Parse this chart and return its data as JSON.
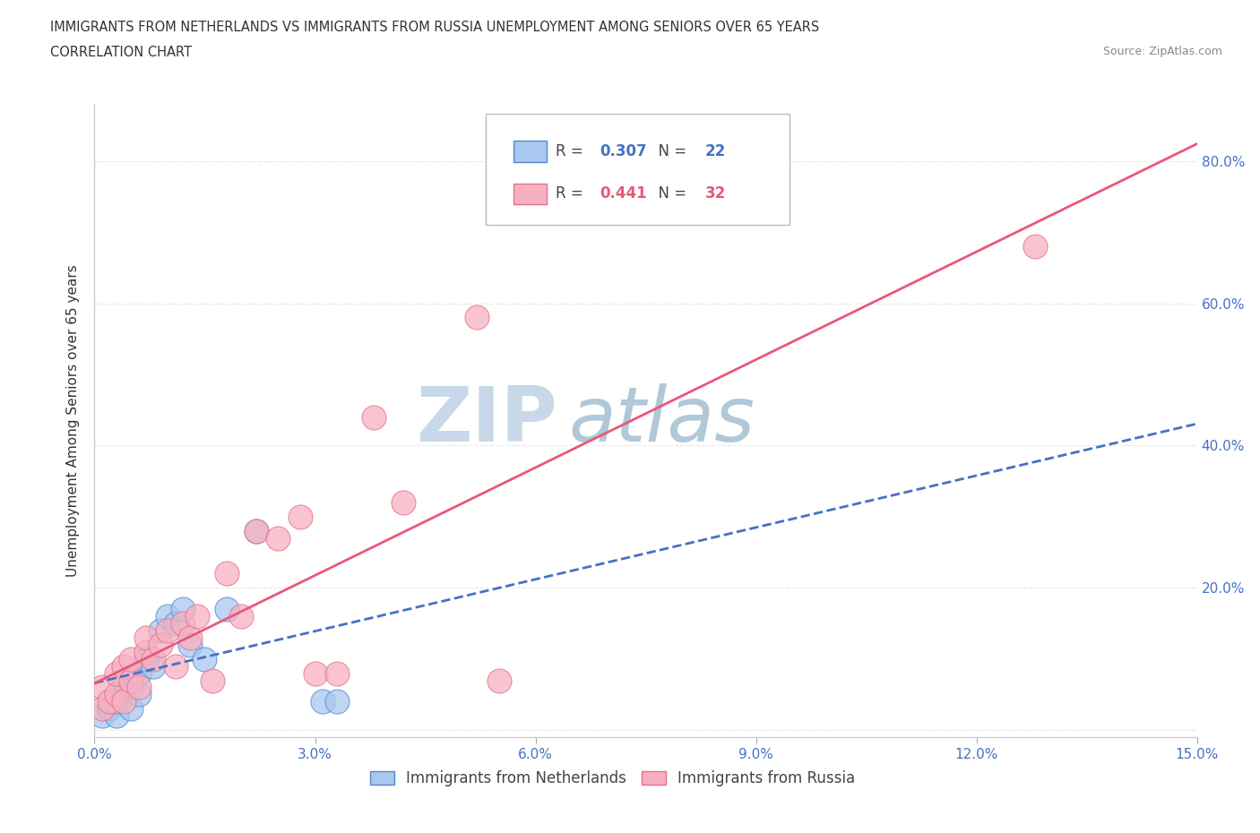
{
  "title_line1": "IMMIGRANTS FROM NETHERLANDS VS IMMIGRANTS FROM RUSSIA UNEMPLOYMENT AMONG SENIORS OVER 65 YEARS",
  "title_line2": "CORRELATION CHART",
  "source_text": "Source: ZipAtlas.com",
  "ylabel": "Unemployment Among Seniors over 65 years",
  "xlim": [
    0.0,
    0.15
  ],
  "ylim": [
    -0.01,
    0.88
  ],
  "xticks": [
    0.0,
    0.03,
    0.06,
    0.09,
    0.12,
    0.15
  ],
  "yticks": [
    0.0,
    0.2,
    0.4,
    0.6,
    0.8
  ],
  "xticklabels": [
    "0.0%",
    "3.0%",
    "6.0%",
    "9.0%",
    "12.0%",
    "15.0%"
  ],
  "right_yticklabels": [
    "",
    "20.0%",
    "40.0%",
    "60.0%",
    "80.0%"
  ],
  "netherlands_x": [
    0.001,
    0.002,
    0.003,
    0.003,
    0.004,
    0.004,
    0.005,
    0.005,
    0.006,
    0.006,
    0.007,
    0.008,
    0.009,
    0.01,
    0.011,
    0.012,
    0.013,
    0.015,
    0.018,
    0.022,
    0.031,
    0.033
  ],
  "netherlands_y": [
    0.02,
    0.03,
    0.02,
    0.04,
    0.05,
    0.07,
    0.03,
    0.06,
    0.05,
    0.08,
    0.1,
    0.09,
    0.14,
    0.16,
    0.15,
    0.17,
    0.12,
    0.1,
    0.17,
    0.28,
    0.04,
    0.04
  ],
  "russia_x": [
    0.001,
    0.001,
    0.002,
    0.003,
    0.003,
    0.004,
    0.004,
    0.005,
    0.005,
    0.006,
    0.007,
    0.007,
    0.008,
    0.009,
    0.01,
    0.011,
    0.012,
    0.013,
    0.014,
    0.016,
    0.018,
    0.02,
    0.022,
    0.025,
    0.028,
    0.03,
    0.033,
    0.038,
    0.042,
    0.052,
    0.055,
    0.128
  ],
  "russia_y": [
    0.03,
    0.06,
    0.04,
    0.05,
    0.08,
    0.04,
    0.09,
    0.07,
    0.1,
    0.06,
    0.11,
    0.13,
    0.1,
    0.12,
    0.14,
    0.09,
    0.15,
    0.13,
    0.16,
    0.07,
    0.22,
    0.16,
    0.28,
    0.27,
    0.3,
    0.08,
    0.08,
    0.44,
    0.32,
    0.58,
    0.07,
    0.68
  ],
  "netherlands_color": "#a8c8f0",
  "netherlands_edge_color": "#5588cc",
  "russia_color": "#f8b0c0",
  "russia_edge_color": "#e07090",
  "netherlands_R": "0.307",
  "netherlands_N": "22",
  "russia_R": "0.441",
  "russia_N": "32",
  "trend_netherlands_color": "#4472c4",
  "trend_russia_color": "#e85878",
  "watermark_zip": "ZIP",
  "watermark_atlas": "atlas",
  "watermark_color_zip": "#c8d8e8",
  "watermark_color_atlas": "#b0c8d8",
  "background_color": "#ffffff",
  "grid_color": "#e8e8e8",
  "tick_label_color": "#4472c4",
  "title_color": "#333333",
  "ylabel_color": "#333333"
}
